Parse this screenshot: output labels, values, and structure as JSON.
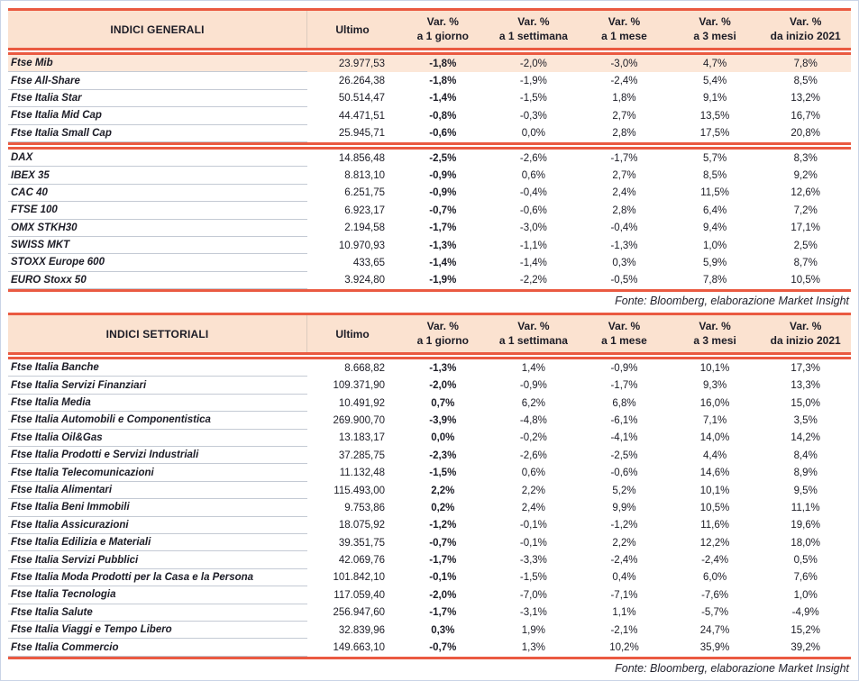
{
  "page": {
    "fonte_note": "Fonte: Bloomberg, elaborazione Market Insight"
  },
  "colors": {
    "accent_rule": "#ea5a41",
    "header_bg": "#fbe2d0",
    "highlight_row_bg": "#fce7d8",
    "row_separator": "#c4cad4",
    "text": "#1c1c26",
    "page_border": "#c9d4e6"
  },
  "columns": {
    "ultimo": "Ultimo",
    "var_headers": [
      {
        "line1": "Var. %",
        "line2": "a 1 giorno"
      },
      {
        "line1": "Var. %",
        "line2": "a 1 settimana"
      },
      {
        "line1": "Var. %",
        "line2": "a 1 mese"
      },
      {
        "line1": "Var. %",
        "line2": "a 3 mesi"
      },
      {
        "line1": "Var. %",
        "line2": "da inizio 2021"
      }
    ]
  },
  "tables": [
    {
      "title": "INDICI GENERALI",
      "groups": [
        {
          "rows": [
            {
              "name": "Ftse Mib",
              "ultimo": "23.977,53",
              "vars": [
                "-1,8%",
                "-2,0%",
                "-3,0%",
                "4,7%",
                "7,8%"
              ],
              "highlight": true
            },
            {
              "name": "Ftse All-Share",
              "ultimo": "26.264,38",
              "vars": [
                "-1,8%",
                "-1,9%",
                "-2,4%",
                "5,4%",
                "8,5%"
              ]
            },
            {
              "name": "Ftse Italia Star",
              "ultimo": "50.514,47",
              "vars": [
                "-1,4%",
                "-1,5%",
                "1,8%",
                "9,1%",
                "13,2%"
              ]
            },
            {
              "name": "Ftse Italia Mid Cap",
              "ultimo": "44.471,51",
              "vars": [
                "-0,8%",
                "-0,3%",
                "2,7%",
                "13,5%",
                "16,7%"
              ]
            },
            {
              "name": "Ftse Italia Small Cap",
              "ultimo": "25.945,71",
              "vars": [
                "-0,6%",
                "0,0%",
                "2,8%",
                "17,5%",
                "20,8%"
              ]
            }
          ]
        },
        {
          "rows": [
            {
              "name": "DAX",
              "ultimo": "14.856,48",
              "vars": [
                "-2,5%",
                "-2,6%",
                "-1,7%",
                "5,7%",
                "8,3%"
              ]
            },
            {
              "name": "IBEX 35",
              "ultimo": "8.813,10",
              "vars": [
                "-0,9%",
                "0,6%",
                "2,7%",
                "8,5%",
                "9,2%"
              ]
            },
            {
              "name": "CAC 40",
              "ultimo": "6.251,75",
              "vars": [
                "-0,9%",
                "-0,4%",
                "2,4%",
                "11,5%",
                "12,6%"
              ]
            },
            {
              "name": "FTSE 100",
              "ultimo": "6.923,17",
              "vars": [
                "-0,7%",
                "-0,6%",
                "2,8%",
                "6,4%",
                "7,2%"
              ]
            },
            {
              "name": "OMX STKH30",
              "ultimo": "2.194,58",
              "vars": [
                "-1,7%",
                "-3,0%",
                "-0,4%",
                "9,4%",
                "17,1%"
              ]
            },
            {
              "name": "SWISS MKT",
              "ultimo": "10.970,93",
              "vars": [
                "-1,3%",
                "-1,1%",
                "-1,3%",
                "1,0%",
                "2,5%"
              ]
            },
            {
              "name": "STOXX Europe 600",
              "ultimo": "433,65",
              "vars": [
                "-1,4%",
                "-1,4%",
                "0,3%",
                "5,9%",
                "8,7%"
              ]
            },
            {
              "name": "EURO Stoxx 50",
              "ultimo": "3.924,80",
              "vars": [
                "-1,9%",
                "-2,2%",
                "-0,5%",
                "7,8%",
                "10,5%"
              ]
            }
          ]
        }
      ]
    },
    {
      "title": "INDICI SETTORIALI",
      "groups": [
        {
          "rows": [
            {
              "name": "Ftse Italia Banche",
              "ultimo": "8.668,82",
              "vars": [
                "-1,3%",
                "1,4%",
                "-0,9%",
                "10,1%",
                "17,3%"
              ]
            },
            {
              "name": "Ftse Italia Servizi Finanziari",
              "ultimo": "109.371,90",
              "vars": [
                "-2,0%",
                "-0,9%",
                "-1,7%",
                "9,3%",
                "13,3%"
              ]
            },
            {
              "name": "Ftse Italia Media",
              "ultimo": "10.491,92",
              "vars": [
                "0,7%",
                "6,2%",
                "6,8%",
                "16,0%",
                "15,0%"
              ]
            },
            {
              "name": "Ftse Italia Automobili e Componentistica",
              "ultimo": "269.900,70",
              "vars": [
                "-3,9%",
                "-4,8%",
                "-6,1%",
                "7,1%",
                "3,5%"
              ]
            },
            {
              "name": "Ftse Italia Oil&Gas",
              "ultimo": "13.183,17",
              "vars": [
                "0,0%",
                "-0,2%",
                "-4,1%",
                "14,0%",
                "14,2%"
              ]
            },
            {
              "name": "Ftse Italia Prodotti e Servizi Industriali",
              "ultimo": "37.285,75",
              "vars": [
                "-2,3%",
                "-2,6%",
                "-2,5%",
                "4,4%",
                "8,4%"
              ]
            },
            {
              "name": "Ftse Italia Telecomunicazioni",
              "ultimo": "11.132,48",
              "vars": [
                "-1,5%",
                "0,6%",
                "-0,6%",
                "14,6%",
                "8,9%"
              ]
            },
            {
              "name": "Ftse Italia Alimentari",
              "ultimo": "115.493,00",
              "vars": [
                "2,2%",
                "2,2%",
                "5,2%",
                "10,1%",
                "9,5%"
              ]
            },
            {
              "name": "Ftse Italia Beni Immobili",
              "ultimo": "9.753,86",
              "vars": [
                "0,2%",
                "2,4%",
                "9,9%",
                "10,5%",
                "11,1%"
              ]
            },
            {
              "name": "Ftse Italia Assicurazioni",
              "ultimo": "18.075,92",
              "vars": [
                "-1,2%",
                "-0,1%",
                "-1,2%",
                "11,6%",
                "19,6%"
              ]
            },
            {
              "name": "Ftse Italia Edilizia e Materiali",
              "ultimo": "39.351,75",
              "vars": [
                "-0,7%",
                "-0,1%",
                "2,2%",
                "12,2%",
                "18,0%"
              ]
            },
            {
              "name": "Ftse Italia Servizi Pubblici",
              "ultimo": "42.069,76",
              "vars": [
                "-1,7%",
                "-3,3%",
                "-2,4%",
                "-2,4%",
                "0,5%"
              ]
            },
            {
              "name": "Ftse Italia Moda Prodotti per la Casa e la Persona",
              "ultimo": "101.842,10",
              "vars": [
                "-0,1%",
                "-1,5%",
                "0,4%",
                "6,0%",
                "7,6%"
              ]
            },
            {
              "name": "Ftse Italia Tecnologia",
              "ultimo": "117.059,40",
              "vars": [
                "-2,0%",
                "-7,0%",
                "-7,1%",
                "-7,6%",
                "1,0%"
              ]
            },
            {
              "name": "Ftse Italia Salute",
              "ultimo": "256.947,60",
              "vars": [
                "-1,7%",
                "-3,1%",
                "1,1%",
                "-5,7%",
                "-4,9%"
              ]
            },
            {
              "name": "Ftse Italia Viaggi e Tempo Libero",
              "ultimo": "32.839,96",
              "vars": [
                "0,3%",
                "1,9%",
                "-2,1%",
                "24,7%",
                "15,2%"
              ]
            },
            {
              "name": "Ftse Italia Commercio",
              "ultimo": "149.663,10",
              "vars": [
                "-0,7%",
                "1,3%",
                "10,2%",
                "35,9%",
                "39,2%"
              ]
            }
          ]
        }
      ]
    }
  ]
}
